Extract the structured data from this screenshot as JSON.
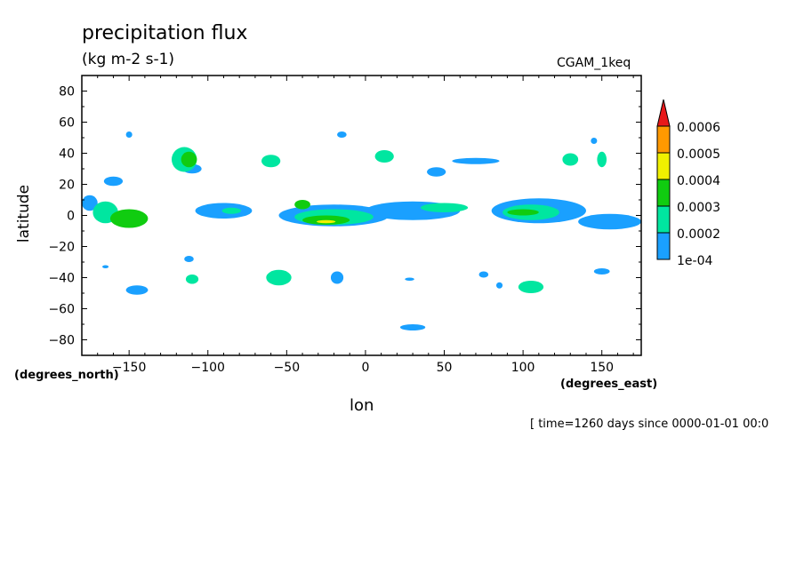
{
  "header": {
    "title": "precipitation flux",
    "units": "(kg m-2 s-1)",
    "dataset": "CGAM_1keq"
  },
  "footer": {
    "time_label": "[ time=1260 days since 0000-01-01 00:0"
  },
  "colors": {
    "band_1": "#1aa0ff",
    "band_2": "#00e6a0",
    "band_3": "#10cc10",
    "band_4": "#f0f000",
    "band_5": "#ff9900",
    "band_6": "#e8181a"
  },
  "chart_data": {
    "type": "heatmap",
    "xlabel": "lon",
    "ylabel": "latitude",
    "x_units": "(degrees_east)",
    "y_units": "(degrees_north)",
    "xlim": [
      -180,
      175
    ],
    "ylim": [
      -90,
      90
    ],
    "xticks": [
      -150,
      -100,
      -50,
      0,
      50,
      100,
      150
    ],
    "yticks": [
      80,
      60,
      40,
      20,
      0,
      -20,
      -40,
      -60,
      -80
    ],
    "colorbar": {
      "labels": [
        "1e-04",
        "0.0002",
        "0.0003",
        "0.0004",
        "0.0005",
        "0.0006"
      ],
      "levels": [
        0.0001,
        0.0002,
        0.0003,
        0.0004,
        0.0005,
        0.0006
      ],
      "extend": "max"
    },
    "features": [
      {
        "lon": -165,
        "lat": 2,
        "rlon": 8,
        "rlat": 7,
        "level": 2
      },
      {
        "lon": -150,
        "lat": -2,
        "rlon": 12,
        "rlat": 6,
        "level": 3
      },
      {
        "lon": -175,
        "lat": 8,
        "rlon": 5,
        "rlat": 5,
        "level": 1
      },
      {
        "lon": -160,
        "lat": 22,
        "rlon": 6,
        "rlat": 3,
        "level": 1
      },
      {
        "lon": -150,
        "lat": 52,
        "rlon": 2,
        "rlat": 2,
        "level": 1
      },
      {
        "lon": -115,
        "lat": 36,
        "rlon": 8,
        "rlat": 8,
        "level": 2
      },
      {
        "lon": -112,
        "lat": 36,
        "rlon": 5,
        "rlat": 5,
        "level": 3
      },
      {
        "lon": -110,
        "lat": 30,
        "rlon": 6,
        "rlat": 3,
        "level": 1
      },
      {
        "lon": -60,
        "lat": 35,
        "rlon": 6,
        "rlat": 4,
        "level": 2
      },
      {
        "lon": 12,
        "lat": 38,
        "rlon": 6,
        "rlat": 4,
        "level": 2
      },
      {
        "lon": -15,
        "lat": 52,
        "rlon": 3,
        "rlat": 2,
        "level": 1
      },
      {
        "lon": 45,
        "lat": 28,
        "rlon": 6,
        "rlat": 3,
        "level": 1
      },
      {
        "lon": 70,
        "lat": 35,
        "rlon": 15,
        "rlat": 2,
        "level": 1
      },
      {
        "lon": 130,
        "lat": 36,
        "rlon": 5,
        "rlat": 4,
        "level": 2
      },
      {
        "lon": 150,
        "lat": 36,
        "rlon": 3,
        "rlat": 5,
        "level": 2
      },
      {
        "lon": 145,
        "lat": 48,
        "rlon": 2,
        "rlat": 2,
        "level": 1
      },
      {
        "lon": -90,
        "lat": 3,
        "rlon": 18,
        "rlat": 5,
        "level": 1
      },
      {
        "lon": -85,
        "lat": 3,
        "rlon": 6,
        "rlat": 2,
        "level": 2
      },
      {
        "lon": -40,
        "lat": 7,
        "rlon": 5,
        "rlat": 3,
        "level": 3
      },
      {
        "lon": -20,
        "lat": 0,
        "rlon": 35,
        "rlat": 7,
        "level": 1
      },
      {
        "lon": -20,
        "lat": -1,
        "rlon": 25,
        "rlat": 5,
        "level": 2
      },
      {
        "lon": -25,
        "lat": -3,
        "rlon": 15,
        "rlat": 3,
        "level": 3
      },
      {
        "lon": -25,
        "lat": -4,
        "rlon": 6,
        "rlat": 1,
        "level": 4
      },
      {
        "lon": 30,
        "lat": 3,
        "rlon": 30,
        "rlat": 6,
        "level": 1
      },
      {
        "lon": 50,
        "lat": 5,
        "rlon": 15,
        "rlat": 3,
        "level": 2
      },
      {
        "lon": 110,
        "lat": 3,
        "rlon": 30,
        "rlat": 8,
        "level": 1
      },
      {
        "lon": 105,
        "lat": 2,
        "rlon": 18,
        "rlat": 5,
        "level": 2
      },
      {
        "lon": 100,
        "lat": 2,
        "rlon": 10,
        "rlat": 2,
        "level": 3
      },
      {
        "lon": 155,
        "lat": -4,
        "rlon": 20,
        "rlat": 5,
        "level": 1
      },
      {
        "lon": -112,
        "lat": -28,
        "rlon": 3,
        "rlat": 2,
        "level": 1
      },
      {
        "lon": -110,
        "lat": -41,
        "rlon": 4,
        "rlat": 3,
        "level": 2
      },
      {
        "lon": -55,
        "lat": -40,
        "rlon": 8,
        "rlat": 5,
        "level": 2
      },
      {
        "lon": -18,
        "lat": -40,
        "rlon": 4,
        "rlat": 4,
        "level": 1
      },
      {
        "lon": 28,
        "lat": -41,
        "rlon": 3,
        "rlat": 1,
        "level": 1
      },
      {
        "lon": 105,
        "lat": -46,
        "rlon": 8,
        "rlat": 4,
        "level": 2
      },
      {
        "lon": 150,
        "lat": -36,
        "rlon": 5,
        "rlat": 2,
        "level": 1
      },
      {
        "lon": -145,
        "lat": -48,
        "rlon": 7,
        "rlat": 3,
        "level": 1
      },
      {
        "lon": 30,
        "lat": -72,
        "rlon": 8,
        "rlat": 2,
        "level": 1
      },
      {
        "lon": -165,
        "lat": -33,
        "rlon": 2,
        "rlat": 1,
        "level": 1
      },
      {
        "lon": 75,
        "lat": -38,
        "rlon": 3,
        "rlat": 2,
        "level": 1
      },
      {
        "lon": 85,
        "lat": -45,
        "rlon": 2,
        "rlat": 2,
        "level": 1
      }
    ]
  }
}
